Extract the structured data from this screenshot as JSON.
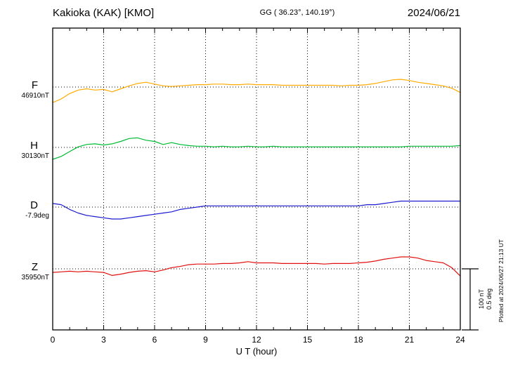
{
  "header": {
    "station": "Kakioka (KAK)  [KMO]",
    "coords": "GG ( 36.23°, 140.19°)",
    "date": "2024/06/21"
  },
  "axis": {
    "xlabel": "U T (hour)",
    "x_ticks": [
      "0",
      "3",
      "6",
      "9",
      "12",
      "15",
      "18",
      "21",
      "24"
    ]
  },
  "scale_bar": {
    "nt": "100 nT",
    "deg": "0.5 deg"
  },
  "plotted_at": "Plotted at 2024/06/27 21:13 UT",
  "colors": {
    "F": "#ffaa00",
    "H": "#00bb33",
    "D": "#1a1ad0",
    "Z": "#e01010",
    "axis": "#000000"
  },
  "chart_data": {
    "type": "line",
    "title": "Kakioka (KAK) [KMO] magnetogram, 2024/06/21",
    "xlabel": "U T (hour)",
    "x_range": [
      0,
      24
    ],
    "x_tick_values": [
      0,
      3,
      6,
      9,
      12,
      15,
      18,
      21,
      24
    ],
    "sample_interval_hours": 0.5,
    "grid": "vertical dotted lines every 3 hours; dotted horizontal baseline for each trace",
    "legend_position": "left margin trace labels",
    "scale_reference": {
      "nT_per_bar": 100,
      "deg_per_bar": 0.5
    },
    "series": [
      {
        "name": "F",
        "baseline_label": "46910nT",
        "baseline_value": 46910,
        "unit": "nT",
        "color": "#ffaa00",
        "offsets_from_baseline": [
          -26,
          -20,
          -11,
          -5,
          -3,
          -5,
          -4,
          -8,
          -3,
          2,
          6,
          8,
          5,
          2,
          1,
          2,
          3,
          4,
          4,
          5,
          5,
          4,
          4,
          5,
          4,
          4,
          4,
          3,
          3,
          3,
          3,
          3,
          3,
          3,
          2,
          3,
          3,
          4,
          6,
          9,
          12,
          13,
          11,
          8,
          6,
          4,
          2,
          -2,
          -9
        ]
      },
      {
        "name": "H",
        "baseline_label": "30130nT",
        "baseline_value": 30130,
        "unit": "nT",
        "color": "#00bb33",
        "offsets_from_baseline": [
          -20,
          -15,
          -7,
          1,
          5,
          6,
          4,
          6,
          10,
          15,
          16,
          12,
          10,
          5,
          8,
          5,
          3,
          2,
          2,
          1,
          2,
          1,
          1,
          2,
          1,
          1,
          2,
          1,
          1,
          1,
          1,
          1,
          1,
          1,
          1,
          1,
          1,
          1,
          1,
          1,
          1,
          1,
          2,
          2,
          2,
          2,
          2,
          2,
          3
        ]
      },
      {
        "name": "D",
        "baseline_label": "-7.9deg",
        "baseline_value": -7.9,
        "unit": "deg",
        "color": "#1a1ad0",
        "offsets_from_baseline": [
          0.03,
          0.02,
          -0.02,
          -0.05,
          -0.07,
          -0.08,
          -0.09,
          -0.1,
          -0.1,
          -0.09,
          -0.08,
          -0.07,
          -0.06,
          -0.05,
          -0.04,
          -0.02,
          -0.01,
          0,
          0.01,
          0.01,
          0.01,
          0.01,
          0.01,
          0.01,
          0.01,
          0.01,
          0.01,
          0.01,
          0.01,
          0.01,
          0.01,
          0.01,
          0.01,
          0.01,
          0.01,
          0.01,
          0.01,
          0.02,
          0.02,
          0.03,
          0.04,
          0.05,
          0.05,
          0.05,
          0.05,
          0.05,
          0.05,
          0.05,
          0.05
        ]
      },
      {
        "name": "Z",
        "baseline_label": "35950nT",
        "baseline_value": 35950,
        "unit": "nT",
        "color": "#e01010",
        "offsets_from_baseline": [
          -6,
          -5,
          -4,
          -5,
          -4,
          -5,
          -6,
          -11,
          -9,
          -6,
          -4,
          -3,
          -5,
          -2,
          2,
          4,
          7,
          8,
          8,
          8,
          9,
          9,
          10,
          12,
          10,
          10,
          10,
          9,
          9,
          9,
          9,
          9,
          8,
          9,
          9,
          9,
          10,
          11,
          13,
          16,
          18,
          20,
          20,
          18,
          14,
          12,
          10,
          2,
          -12
        ]
      }
    ]
  }
}
